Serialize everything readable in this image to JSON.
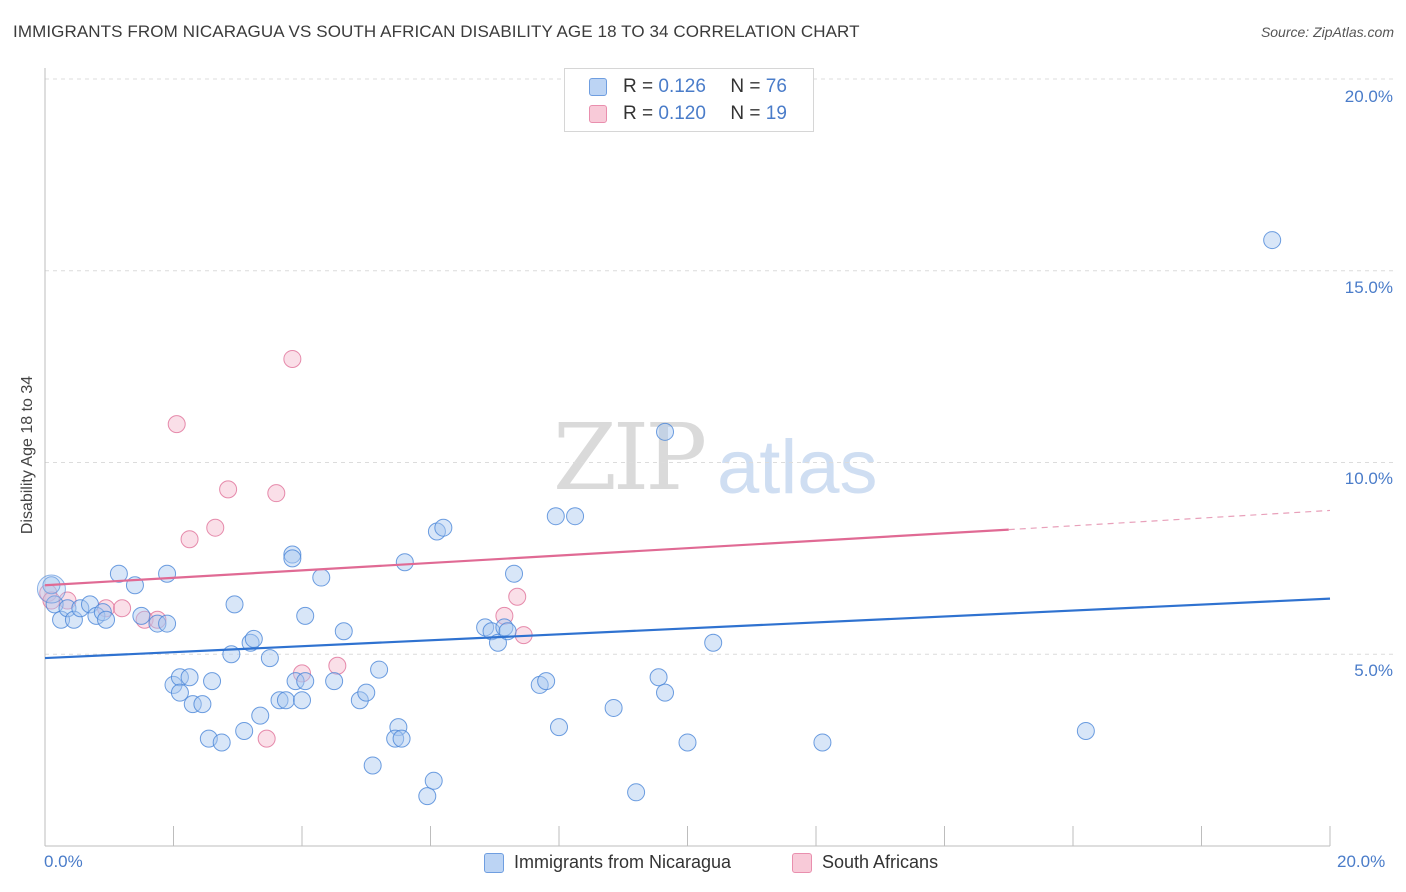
{
  "title": "IMMIGRANTS FROM NICARAGUA VS SOUTH AFRICAN DISABILITY AGE 18 TO 34 CORRELATION CHART",
  "source": "Source: ZipAtlas.com",
  "watermark": {
    "zip": "ZIP",
    "atlas": "atlas"
  },
  "legend": {
    "rows": [
      {
        "r_label": "R =",
        "r_value": "0.126",
        "n_label": "N =",
        "n_value": "76"
      },
      {
        "r_label": "R =",
        "r_value": "0.120",
        "n_label": "N =",
        "n_value": "19"
      }
    ]
  },
  "colors": {
    "blue": "#4a86d8",
    "blue_fill": "#a9c8f0",
    "pink": "#e07099",
    "pink_fill": "#f4b8cb",
    "tick_text": "#4a7cc9"
  },
  "chart_data": {
    "type": "scatter",
    "title": "IMMIGRANTS FROM NICARAGUA VS SOUTH AFRICAN DISABILITY AGE 18 TO 34 CORRELATION CHART",
    "xlabel": "",
    "ylabel": "Disability Age 18 to 34",
    "xlim": [
      0,
      20
    ],
    "ylim": [
      0,
      20
    ],
    "x_tick_labels": [
      "0.0%",
      "20.0%"
    ],
    "y_ticks": [
      5,
      10,
      15,
      20
    ],
    "y_tick_labels": [
      "5.0%",
      "10.0%",
      "15.0%",
      "20.0%"
    ],
    "grid": true,
    "legend_position": "top-center",
    "series": [
      {
        "name": "Immigrants from Nicaragua",
        "color": "#4a86d8",
        "trend": {
          "x": [
            0,
            20
          ],
          "y": [
            4.9,
            6.45
          ]
        },
        "points": [
          [
            0.1,
            6.8
          ],
          [
            0.15,
            6.3
          ],
          [
            0.25,
            5.9
          ],
          [
            0.35,
            6.2
          ],
          [
            0.45,
            5.9
          ],
          [
            0.55,
            6.2
          ],
          [
            0.7,
            6.3
          ],
          [
            0.8,
            6.0
          ],
          [
            0.9,
            6.1
          ],
          [
            0.95,
            5.9
          ],
          [
            1.15,
            7.1
          ],
          [
            1.4,
            6.8
          ],
          [
            1.5,
            6.0
          ],
          [
            1.75,
            5.8
          ],
          [
            1.9,
            7.1
          ],
          [
            2.0,
            4.2
          ],
          [
            2.3,
            3.7
          ],
          [
            2.45,
            3.7
          ],
          [
            2.55,
            2.8
          ],
          [
            2.6,
            4.3
          ],
          [
            2.75,
            2.7
          ],
          [
            2.9,
            5.0
          ],
          [
            2.95,
            6.3
          ],
          [
            3.1,
            3.0
          ],
          [
            3.2,
            5.3
          ],
          [
            3.35,
            3.4
          ],
          [
            3.5,
            4.9
          ],
          [
            3.65,
            3.8
          ],
          [
            3.75,
            3.8
          ],
          [
            3.85,
            7.6
          ],
          [
            3.9,
            4.3
          ],
          [
            3.85,
            7.5
          ],
          [
            4.0,
            3.8
          ],
          [
            4.05,
            6.0
          ],
          [
            4.05,
            4.3
          ],
          [
            4.3,
            7.0
          ],
          [
            4.5,
            4.3
          ],
          [
            4.65,
            5.6
          ],
          [
            4.9,
            3.8
          ],
          [
            5.0,
            4.0
          ],
          [
            5.1,
            2.1
          ],
          [
            5.2,
            4.6
          ],
          [
            5.5,
            3.1
          ],
          [
            5.45,
            2.8
          ],
          [
            5.6,
            7.4
          ],
          [
            5.55,
            2.8
          ],
          [
            5.95,
            1.3
          ],
          [
            6.05,
            1.7
          ],
          [
            6.1,
            8.2
          ],
          [
            6.2,
            8.3
          ],
          [
            6.85,
            5.7
          ],
          [
            6.95,
            5.6
          ],
          [
            7.05,
            5.3
          ],
          [
            7.15,
            5.7
          ],
          [
            7.2,
            5.6
          ],
          [
            7.3,
            7.1
          ],
          [
            7.7,
            4.2
          ],
          [
            7.8,
            4.3
          ],
          [
            7.95,
            8.6
          ],
          [
            8.0,
            3.1
          ],
          [
            8.25,
            8.6
          ],
          [
            8.85,
            3.6
          ],
          [
            9.2,
            1.4
          ],
          [
            9.55,
            4.4
          ],
          [
            9.65,
            4.0
          ],
          [
            9.65,
            10.8
          ],
          [
            10.0,
            2.7
          ],
          [
            10.4,
            5.3
          ],
          [
            12.1,
            2.7
          ],
          [
            16.2,
            3.0
          ],
          [
            19.1,
            15.8
          ],
          [
            2.1,
            4.4
          ],
          [
            2.25,
            4.4
          ],
          [
            1.9,
            5.8
          ],
          [
            3.25,
            5.4
          ],
          [
            2.1,
            4.0
          ]
        ]
      },
      {
        "name": "South Africans",
        "color": "#e07099",
        "trend": {
          "x": [
            0,
            15
          ],
          "y": [
            6.8,
            8.25
          ]
        },
        "trend_dashed": {
          "x": [
            15,
            20
          ],
          "y": [
            8.25,
            8.75
          ]
        },
        "points": [
          [
            0.05,
            6.6
          ],
          [
            0.1,
            6.4
          ],
          [
            0.35,
            6.4
          ],
          [
            0.95,
            6.2
          ],
          [
            1.2,
            6.2
          ],
          [
            1.55,
            5.9
          ],
          [
            1.75,
            5.9
          ],
          [
            2.05,
            11.0
          ],
          [
            2.25,
            8.0
          ],
          [
            2.65,
            8.3
          ],
          [
            2.85,
            9.3
          ],
          [
            3.45,
            2.8
          ],
          [
            3.6,
            9.2
          ],
          [
            3.85,
            12.7
          ],
          [
            4.0,
            4.5
          ],
          [
            4.55,
            4.7
          ],
          [
            7.15,
            6.0
          ],
          [
            7.35,
            6.5
          ],
          [
            7.45,
            5.5
          ]
        ]
      }
    ]
  },
  "x_axis": {
    "left_label": "0.0%",
    "right_label": "20.0%"
  },
  "bottom_legend": [
    "Immigrants from Nicaragua",
    "South Africans"
  ]
}
